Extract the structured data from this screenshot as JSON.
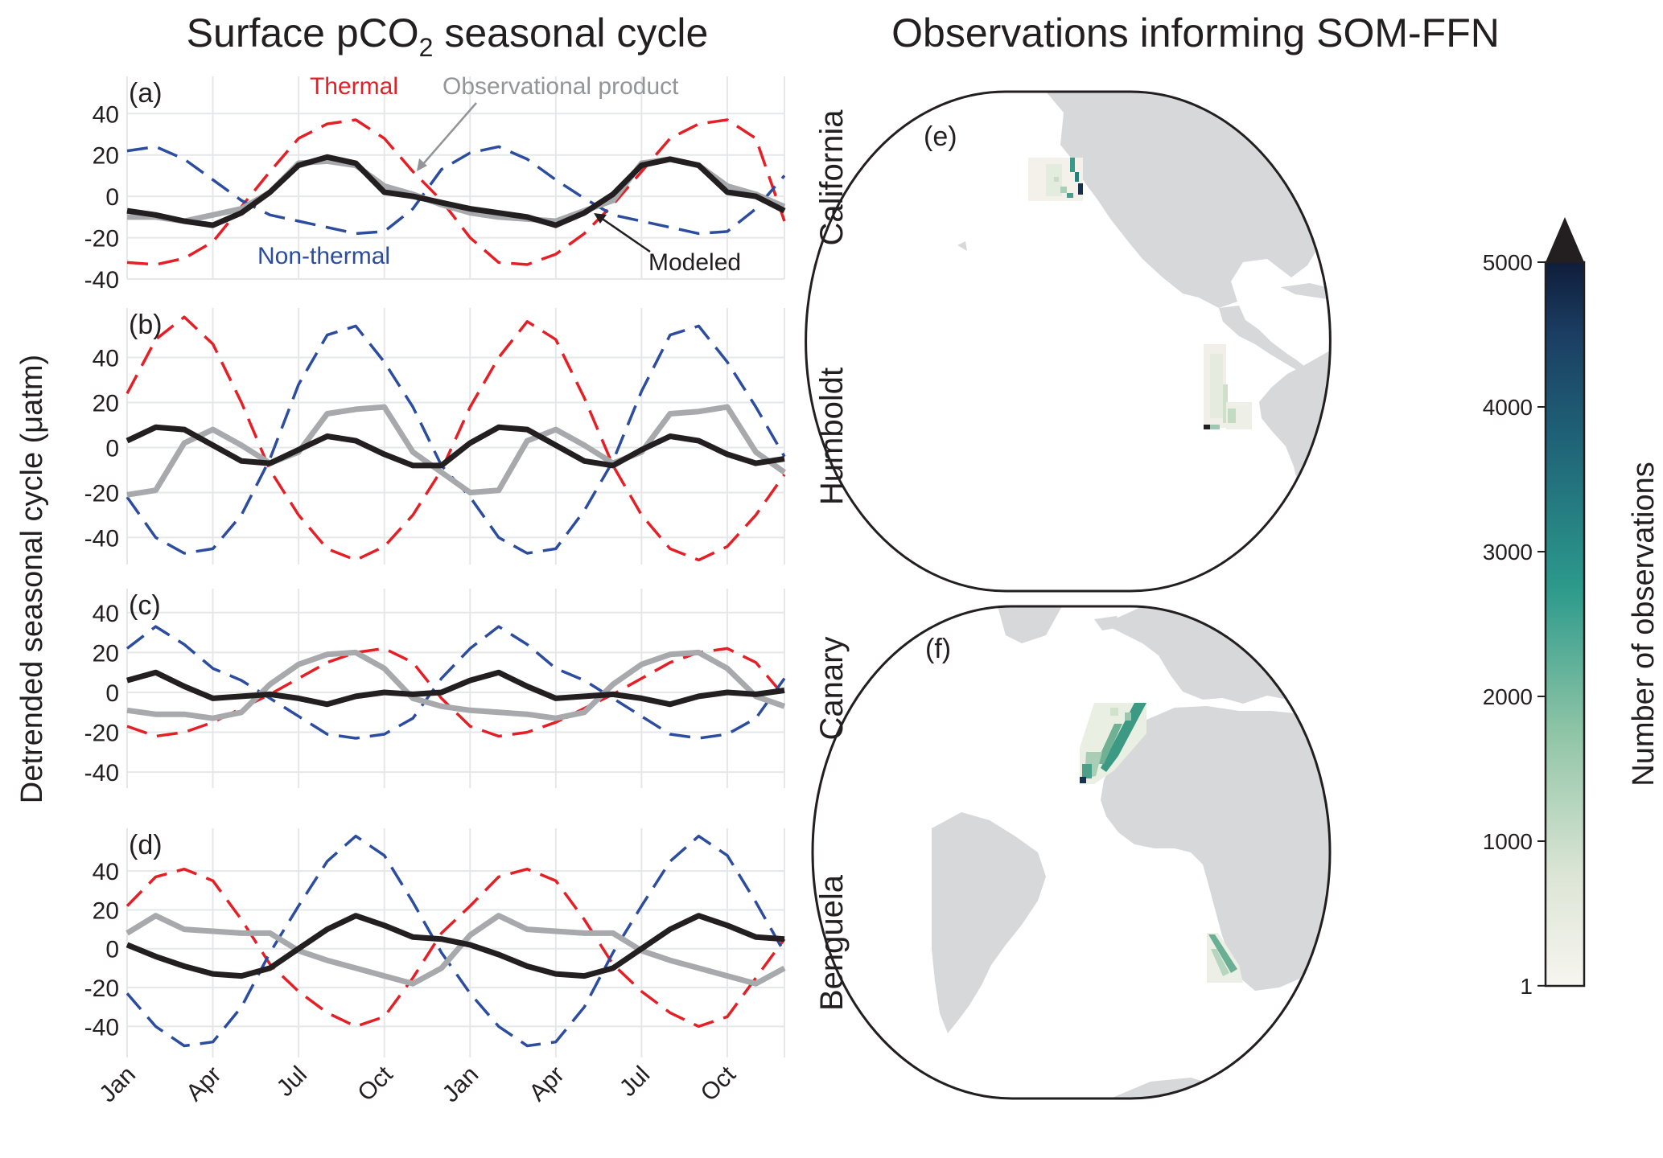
{
  "figure": {
    "left_title_main": "Surface pCO",
    "left_title_sub": "2",
    "left_title_rest": " seasonal cycle",
    "right_title": "Observations informing SOM-FFN",
    "ylabel": "Detrended seasonal cycle (μatm)",
    "x_tick_labels": [
      "Jan",
      "Apr",
      "Jul",
      "Oct",
      "Jan",
      "Apr",
      "Jul",
      "Oct"
    ],
    "annotations": {
      "thermal": "Thermal",
      "non_thermal": "Non-thermal",
      "observational": "Observational product",
      "modeled": "Modeled"
    },
    "map_labels": [
      "(e)",
      "(f)"
    ],
    "colorbar": {
      "label": "Number of observations",
      "ticks": [
        "5000",
        "4000",
        "3000",
        "2000",
        "1000",
        "1"
      ],
      "tick_values": [
        5000,
        4000,
        3000,
        2000,
        1000,
        1
      ]
    }
  },
  "colors": {
    "thermal": "#e41f26",
    "non_thermal": "#2b4c9f",
    "modeled": "#231f20",
    "observational": "#a7a9ac",
    "land": "#d7d8da",
    "grid": "#e6e7e8"
  },
  "chart_data": [
    {
      "type": "line",
      "panel": "(a)",
      "region": "California",
      "xlabel": "",
      "ylabel": "Detrended seasonal cycle (μatm)",
      "ylim": [
        -40,
        58
      ],
      "y_ticks": [
        40,
        20,
        0,
        -20,
        -40
      ],
      "x": [
        0,
        1,
        2,
        3,
        4,
        5,
        6,
        7,
        8,
        9,
        10,
        11,
        12,
        13,
        14,
        15,
        16,
        17,
        18,
        19,
        20,
        21,
        22,
        23
      ],
      "series": [
        {
          "name": "Thermal",
          "values": [
            -32,
            -33,
            -30,
            -22,
            -5,
            12,
            28,
            35,
            37,
            28,
            12,
            -2,
            -20,
            -32,
            -33,
            -28,
            -18,
            -4,
            12,
            28,
            35,
            37,
            28,
            -12
          ]
        },
        {
          "name": "Non-thermal",
          "values": [
            22,
            24,
            18,
            8,
            -2,
            -9,
            -12,
            -15,
            -18,
            -17,
            -6,
            13,
            21,
            24,
            18,
            8,
            -1,
            -9,
            -12,
            -15,
            -18,
            -17,
            -6,
            10
          ]
        },
        {
          "name": "Modeled",
          "values": [
            -7,
            -9,
            -12,
            -14,
            -8,
            2,
            15,
            19,
            16,
            2,
            0,
            -3,
            -6,
            -8,
            -10,
            -14,
            -8,
            1,
            15,
            18,
            15,
            2,
            0,
            -7
          ]
        },
        {
          "name": "Observational product",
          "values": [
            -10,
            -10,
            -12,
            -9,
            -6,
            2,
            16,
            17,
            15,
            5,
            1,
            -4,
            -8,
            -10,
            -11,
            -12,
            -7,
            -2,
            16,
            18,
            15,
            5,
            1,
            -5
          ]
        }
      ]
    },
    {
      "type": "line",
      "panel": "(b)",
      "region": "Humboldt",
      "ylim": [
        -52,
        62
      ],
      "y_ticks": [
        40,
        20,
        0,
        -20,
        -40
      ],
      "x": [
        0,
        1,
        2,
        3,
        4,
        5,
        6,
        7,
        8,
        9,
        10,
        11,
        12,
        13,
        14,
        15,
        16,
        17,
        18,
        19,
        20,
        21,
        22,
        23
      ],
      "series": [
        {
          "name": "Thermal",
          "values": [
            24,
            48,
            58,
            46,
            20,
            -10,
            -30,
            -45,
            -50,
            -44,
            -30,
            -10,
            18,
            40,
            56,
            48,
            22,
            -8,
            -30,
            -45,
            -50,
            -44,
            -30,
            -12
          ]
        },
        {
          "name": "Non-thermal",
          "values": [
            -22,
            -40,
            -47,
            -45,
            -30,
            -5,
            28,
            50,
            54,
            38,
            18,
            -8,
            -22,
            -40,
            -47,
            -45,
            -28,
            -6,
            25,
            50,
            54,
            38,
            18,
            -4
          ]
        },
        {
          "name": "Modeled",
          "values": [
            3,
            9,
            8,
            1,
            -6,
            -7,
            -1,
            5,
            3,
            -3,
            -8,
            -8,
            2,
            9,
            8,
            1,
            -6,
            -8,
            -1,
            5,
            3,
            -3,
            -7,
            -5
          ]
        },
        {
          "name": "Observational product",
          "values": [
            -21,
            -19,
            2,
            8,
            1,
            -7,
            -2,
            15,
            17,
            18,
            -2,
            -11,
            -20,
            -19,
            3,
            8,
            1,
            -7,
            -2,
            15,
            16,
            18,
            -2,
            -11
          ]
        }
      ]
    },
    {
      "type": "line",
      "panel": "(c)",
      "region": "Canary",
      "ylim": [
        -48,
        52
      ],
      "y_ticks": [
        40,
        20,
        0,
        -20,
        -40
      ],
      "x": [
        0,
        1,
        2,
        3,
        4,
        5,
        6,
        7,
        8,
        9,
        10,
        11,
        12,
        13,
        14,
        15,
        16,
        17,
        18,
        19,
        20,
        21,
        22,
        23
      ],
      "series": [
        {
          "name": "Thermal",
          "values": [
            -17,
            -22,
            -20,
            -15,
            -8,
            -1,
            7,
            15,
            20,
            22,
            15,
            -3,
            -17,
            -22,
            -20,
            -15,
            -8,
            -1,
            7,
            15,
            20,
            22,
            15,
            -2
          ]
        },
        {
          "name": "Non-thermal",
          "values": [
            22,
            33,
            24,
            12,
            6,
            -3,
            -12,
            -21,
            -23,
            -21,
            -13,
            7,
            22,
            33,
            24,
            12,
            6,
            -3,
            -12,
            -21,
            -23,
            -21,
            -13,
            7
          ]
        },
        {
          "name": "Modeled",
          "values": [
            6,
            10,
            3,
            -3,
            -2,
            -1,
            -3,
            -6,
            -2,
            0,
            -1,
            0,
            6,
            10,
            3,
            -3,
            -2,
            -1,
            -3,
            -6,
            -2,
            0,
            -1,
            1
          ]
        },
        {
          "name": "Observational product",
          "values": [
            -9,
            -11,
            -11,
            -13,
            -10,
            4,
            14,
            19,
            20,
            12,
            -3,
            -7,
            -9,
            -10,
            -11,
            -13,
            -10,
            4,
            14,
            19,
            20,
            12,
            -2,
            -7
          ]
        }
      ]
    },
    {
      "type": "line",
      "panel": "(d)",
      "region": "Benguela",
      "ylim": [
        -56,
        62
      ],
      "y_ticks": [
        40,
        20,
        0,
        -20,
        -40
      ],
      "x": [
        0,
        1,
        2,
        3,
        4,
        5,
        6,
        7,
        8,
        9,
        10,
        11,
        12,
        13,
        14,
        15,
        16,
        17,
        18,
        19,
        20,
        21,
        22,
        23
      ],
      "series": [
        {
          "name": "Thermal",
          "values": [
            22,
            37,
            41,
            35,
            15,
            -8,
            -22,
            -33,
            -40,
            -35,
            -15,
            8,
            22,
            37,
            41,
            35,
            15,
            -8,
            -22,
            -33,
            -40,
            -35,
            -15,
            5
          ]
        },
        {
          "name": "Non-thermal",
          "values": [
            -23,
            -40,
            -50,
            -48,
            -30,
            -2,
            22,
            45,
            58,
            48,
            24,
            -2,
            -23,
            -40,
            -50,
            -48,
            -30,
            -2,
            22,
            45,
            58,
            48,
            24,
            -2
          ]
        },
        {
          "name": "Modeled",
          "values": [
            2,
            -4,
            -9,
            -13,
            -14,
            -10,
            0,
            10,
            17,
            12,
            6,
            5,
            2,
            -3,
            -9,
            -13,
            -14,
            -10,
            0,
            10,
            17,
            12,
            6,
            5
          ]
        },
        {
          "name": "Observational product",
          "values": [
            8,
            17,
            10,
            9,
            8,
            8,
            -1,
            -6,
            -10,
            -14,
            -18,
            -10,
            7,
            17,
            10,
            9,
            8,
            8,
            -1,
            -6,
            -10,
            -14,
            -18,
            -10
          ]
        }
      ]
    }
  ]
}
